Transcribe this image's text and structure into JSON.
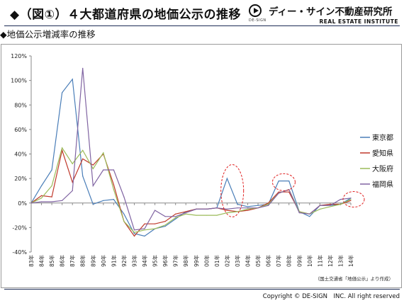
{
  "header": {
    "title": "◆（図①）４大都道府県の地価公示の推移",
    "brand_jp": "ディー・サイン不動産研究所",
    "brand_en": "REAL ESTATE INSTITUTE",
    "brand_small": "DE-SIGN"
  },
  "subtitle": "◆地価公示増減率の推移",
  "source_note": "（国土交通省「地価公示」より作成）",
  "copyright": "Copyright © DE-SIGN　INC. All right reserved",
  "chart_data": {
    "type": "line",
    "title": "地価公示増減率の推移",
    "categories": [
      "83年",
      "84年",
      "85年",
      "86年",
      "87年",
      "88年",
      "89年",
      "90年",
      "91年",
      "92年",
      "93年",
      "94年",
      "95年",
      "96年",
      "97年",
      "98年",
      "99年",
      "00年",
      "01年",
      "02年",
      "03年",
      "04年",
      "05年",
      "06年",
      "07年",
      "08年",
      "09年",
      "10年",
      "11年",
      "12年",
      "13年",
      "14年"
    ],
    "y_ticks": [
      "-40%",
      "-20%",
      "0%",
      "20%",
      "40%",
      "60%",
      "80%",
      "100%",
      "120%"
    ],
    "ylim": [
      -40,
      120
    ],
    "y_unit": "%",
    "grid": false,
    "legend_position": "right",
    "series": [
      {
        "name": "東京都",
        "color": "#4a7eb8",
        "values": [
          0,
          14,
          27,
          90,
          101,
          22,
          -1,
          2,
          3,
          -9,
          -25,
          -27,
          -21,
          -19,
          -13,
          -7,
          -5,
          -5,
          -4,
          20,
          -1,
          -3,
          -2,
          -1,
          18,
          18,
          -7,
          -11,
          -2,
          -2,
          -1,
          4
        ]
      },
      {
        "name": "愛知県",
        "color": "#c0392b",
        "values": [
          0,
          6,
          5,
          43,
          17,
          36,
          31,
          40,
          15,
          -15,
          -27,
          -17,
          -17,
          -15,
          -9,
          -7,
          -5,
          -5,
          -4,
          -6,
          -7,
          -6,
          -4,
          0,
          9,
          9,
          -7,
          -9,
          -2,
          -1,
          -1,
          2
        ]
      },
      {
        "name": "大阪府",
        "color": "#9bbb59",
        "values": [
          0,
          4,
          14,
          45,
          32,
          43,
          28,
          41,
          11,
          -15,
          -24,
          -22,
          -21,
          -18,
          -12,
          -9,
          -10,
          -10,
          -10,
          -8,
          -7,
          -5,
          -4,
          -1,
          8,
          11,
          -7,
          -9,
          -5,
          -3,
          -1,
          3
        ]
      },
      {
        "name": "福岡県",
        "color": "#8064a2",
        "values": [
          0,
          1,
          1,
          2,
          10,
          110,
          14,
          27,
          27,
          5,
          -22,
          -21,
          -6,
          -11,
          -11,
          -8,
          -5,
          -5,
          -4,
          -5,
          -4,
          -4,
          -4,
          -2,
          8,
          11,
          -8,
          -9,
          -2,
          -2,
          3,
          4
        ]
      }
    ],
    "highlights": [
      {
        "label": "02年–03年"
      },
      {
        "label": "07年–08年"
      },
      {
        "label": "14年"
      }
    ]
  }
}
